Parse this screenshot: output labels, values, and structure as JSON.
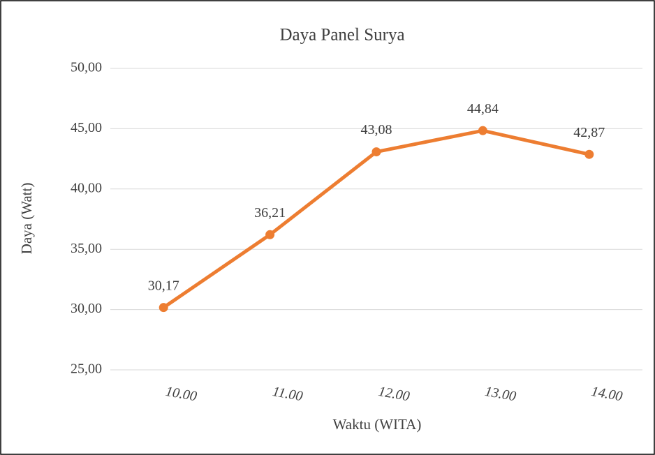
{
  "chart_data": {
    "type": "line",
    "title": "Daya Panel Surya",
    "x_label": "Waktu (WITA)",
    "y_label": "Daya (Watt)",
    "categories": [
      "10.00",
      "11.00",
      "12.00",
      "13.00",
      "14.00"
    ],
    "values": [
      30.17,
      36.21,
      43.08,
      44.84,
      42.87
    ],
    "value_labels": [
      "30,17",
      "36,21",
      "43,08",
      "44,84",
      "42,87"
    ],
    "color": "#ed7d31",
    "ylim": [
      25,
      50
    ],
    "yticks": [
      {
        "value": 25,
        "label": "25,00"
      },
      {
        "value": 30,
        "label": "30,00"
      },
      {
        "value": 35,
        "label": "35,00"
      },
      {
        "value": 40,
        "label": "40,00"
      },
      {
        "value": 45,
        "label": "45,00"
      },
      {
        "value": 50,
        "label": "50,00"
      }
    ],
    "grid": true
  }
}
